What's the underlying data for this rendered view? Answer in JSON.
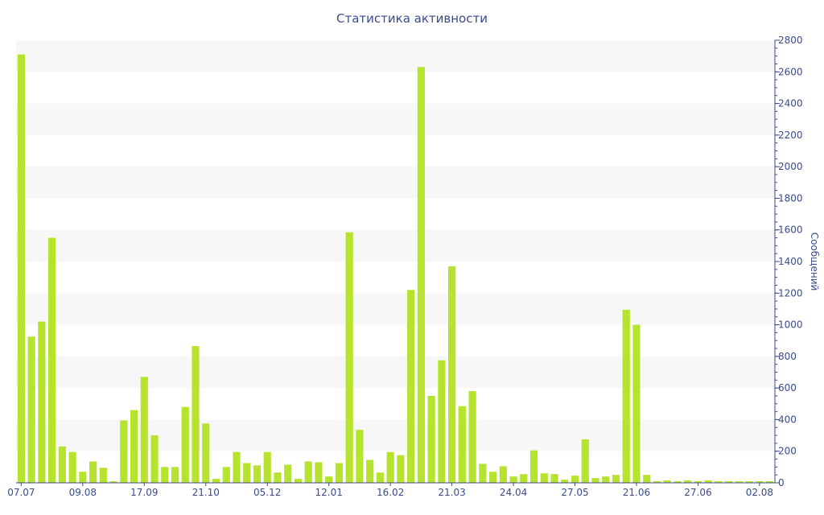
{
  "colors": {
    "bar": "#b5e32e",
    "axis": "#3b4a8c",
    "text": "#3b4a8c",
    "band": "#f7f7f7",
    "background": "#ffffff"
  },
  "chart_data": {
    "type": "bar",
    "title": "Статистика активности",
    "xlabel": "",
    "ylabel": "Сообщений",
    "y_axis_side": "right",
    "ylim": [
      0,
      2800
    ],
    "y_ticks": [
      0,
      200,
      400,
      600,
      800,
      1000,
      1200,
      1400,
      1600,
      1800,
      2000,
      2200,
      2400,
      2600,
      2800
    ],
    "x_tick_labels": [
      {
        "label": "07.07",
        "index": 0
      },
      {
        "label": "09.08",
        "index": 6
      },
      {
        "label": "17.09",
        "index": 12
      },
      {
        "label": "21.10",
        "index": 18
      },
      {
        "label": "05.12",
        "index": 24
      },
      {
        "label": "12.01",
        "index": 30
      },
      {
        "label": "16.02",
        "index": 36
      },
      {
        "label": "21.03",
        "index": 42
      },
      {
        "label": "24.04",
        "index": 48
      },
      {
        "label": "27.05",
        "index": 54
      },
      {
        "label": "21.06",
        "index": 60
      },
      {
        "label": "27.06",
        "index": 66
      },
      {
        "label": "02.08",
        "index": 72
      }
    ],
    "background_bands": "alternating",
    "grid": false,
    "values": [
      2710,
      925,
      1020,
      1550,
      230,
      195,
      70,
      135,
      95,
      10,
      395,
      460,
      670,
      300,
      100,
      100,
      480,
      865,
      375,
      25,
      100,
      195,
      125,
      110,
      195,
      65,
      115,
      25,
      135,
      130,
      40,
      125,
      1585,
      335,
      145,
      65,
      195,
      175,
      1220,
      2630,
      550,
      775,
      1370,
      485,
      580,
      120,
      70,
      105,
      40,
      55,
      205,
      60,
      55,
      20,
      45,
      275,
      30,
      40,
      50,
      1095,
      1000,
      50,
      10,
      15,
      10,
      15,
      10,
      15,
      10,
      10,
      10,
      10,
      10,
      10
    ]
  }
}
